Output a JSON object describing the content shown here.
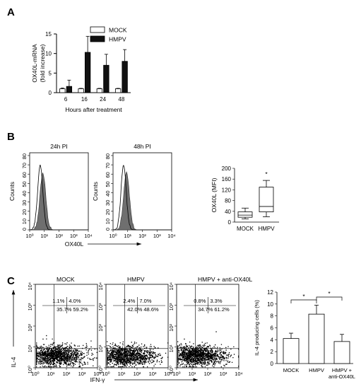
{
  "figure": {
    "panels": [
      "A",
      "B",
      "C"
    ]
  },
  "chart_data": [
    {
      "id": "A",
      "type": "bar",
      "ylabel": "OX40L-mRNA\n(fold increase)",
      "xlabel": "Hours after treatment",
      "categories": [
        "6",
        "16",
        "24",
        "48"
      ],
      "ylim": [
        0,
        15
      ],
      "yticks": [
        "0",
        "5",
        "10",
        "15"
      ],
      "legend": "top-right",
      "series": [
        {
          "name": "MOCK",
          "color": "#ffffff",
          "values": [
            1.0,
            1.0,
            1.0,
            1.0
          ],
          "err": [
            0.2,
            0.1,
            0.1,
            0.1
          ]
        },
        {
          "name": "HMPV",
          "color": "#111111",
          "values": [
            1.6,
            10.3,
            7.0,
            8.0
          ],
          "err": [
            1.6,
            4.1,
            2.8,
            3.0
          ]
        }
      ]
    },
    {
      "id": "B-histograms",
      "type": "area",
      "plots": [
        {
          "title": "24h PI",
          "show_ylabel": true
        },
        {
          "title": "48h PI",
          "show_ylabel": true
        }
      ],
      "ylabel": "Counts",
      "xlabel": "OX40L",
      "yticks": [
        "0",
        "10",
        "20",
        "30",
        "40",
        "50",
        "60",
        "70",
        "80"
      ],
      "xticks": [
        "10⁰",
        "10¹",
        "10²",
        "10³",
        "10⁴"
      ]
    },
    {
      "id": "B-box",
      "type": "box",
      "ylabel": "OX40L (MFI)",
      "categories": [
        "MOCK",
        "HMPV"
      ],
      "ylim": [
        0,
        200
      ],
      "yticks": [
        "0",
        "40",
        "80",
        "120",
        "160",
        "200"
      ],
      "boxes": [
        {
          "min": 12,
          "q1": 18,
          "median": 26,
          "q3": 38,
          "max": 52
        },
        {
          "min": 20,
          "q1": 38,
          "median": 58,
          "q3": 130,
          "max": 155
        }
      ],
      "annotation": "*"
    },
    {
      "id": "C-dotplots",
      "type": "scatter",
      "ylabel": "IL-4",
      "xlabel": "IFN-γ",
      "yticks": [
        "10⁰",
        "10¹",
        "10²",
        "10³",
        "10⁴"
      ],
      "xticks": [
        "10⁰",
        "10¹",
        "10²",
        "10³",
        "10⁴"
      ],
      "plots": [
        {
          "title": "MOCK",
          "ul": "1.1%",
          "ur": "4.0%",
          "ll": "35.7%",
          "lr": "59.2%"
        },
        {
          "title": "HMPV",
          "ul": "2.4%",
          "ur": "7.0%",
          "ll": "42.0%",
          "lr": "48.6%"
        },
        {
          "title": "HMPV + anti-OX40L",
          "ul": "0.8%",
          "ur": "3.3%",
          "ll": "34.7%",
          "lr": "61.2%"
        }
      ]
    },
    {
      "id": "C-bar",
      "type": "bar",
      "ylabel": "IL-4 producing cells (%)",
      "categories": [
        "MOCK",
        "HMPV",
        "HMPV +\nanti-OX40L"
      ],
      "ylim": [
        0,
        12
      ],
      "yticks": [
        "0",
        "2",
        "4",
        "6",
        "8",
        "10",
        "12"
      ],
      "values": [
        4.2,
        8.3,
        3.7
      ],
      "err": [
        0.9,
        1.5,
        1.2
      ],
      "annotations": [
        "*",
        "*"
      ]
    }
  ]
}
